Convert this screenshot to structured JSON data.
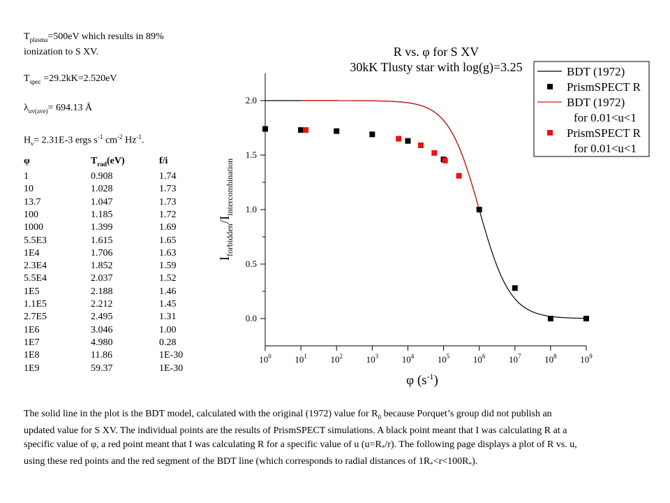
{
  "params": {
    "t_plasma_sym": "T",
    "t_plasma_sub": "plasma",
    "t_plasma_text": "=500eV which results in 89%",
    "t_plasma_line2": "ionization to S XV.",
    "t_spec_sym": "T",
    "t_spec_sub": "spec",
    "t_spec_text": " =29.2kK=2.520eV",
    "lambda_sym": "λ",
    "lambda_sub": "uv(ave)",
    "lambda_text": "= 694.13 Å",
    "h_sym": "H",
    "h_sub": "ν",
    "h_text_a": "= 2.31E-3 ergs s",
    "h_sup1": "-1",
    "h_text_b": " cm",
    "h_sup2": "-2",
    "h_text_c": " Hz",
    "h_sup3": "-1",
    "h_text_d": "."
  },
  "table": {
    "header": {
      "phi": "φ",
      "trad_sym": "T",
      "trad_sub": "rad",
      "trad_unit": "(eV)",
      "fi": "f/i"
    },
    "rows": [
      [
        "1",
        "0.908",
        "1.74"
      ],
      [
        "10",
        "1.028",
        "1.73"
      ],
      [
        "13.7",
        "1.047",
        "1.73"
      ],
      [
        "100",
        "1.185",
        "1.72"
      ],
      [
        "1000",
        "1.399",
        "1.69"
      ],
      [
        "5.5E3",
        "1.615",
        "1.65"
      ],
      [
        "1E4",
        "1.706",
        "1.63"
      ],
      [
        "2.3E4",
        "1.852",
        "1.59"
      ],
      [
        "5.5E4",
        "2.037",
        "1.52"
      ],
      [
        "1E5",
        "2.188",
        "1.46"
      ],
      [
        "1.1E5",
        "2.212",
        "1.45"
      ],
      [
        "2.7E5",
        "2.495",
        "1.31"
      ],
      [
        "1E6",
        "3.046",
        "1.00"
      ],
      [
        "1E7",
        "4.980",
        "0.28"
      ],
      [
        "1E8",
        "11.86",
        "1E-30"
      ],
      [
        "1E9",
        "59.37",
        "1E-30"
      ]
    ]
  },
  "chart_data": {
    "type": "scatter",
    "title": "R vs. φ for S XV",
    "subtitle": "30kK Tlusty star with log(g)=3.25",
    "xlabel": "φ (s",
    "xlabel_sup": "-1",
    "xlabel_close": ")",
    "ylabel_main": "I",
    "ylabel_sub1": "forbidden",
    "ylabel_mid": "/I",
    "ylabel_sub2": "intercombination",
    "x_scale": "log",
    "xlim": [
      1,
      1000000000
    ],
    "ylim": [
      -0.25,
      2.25
    ],
    "x_ticks": [
      {
        "value": 1,
        "base": "10",
        "exp": "0"
      },
      {
        "value": 10,
        "base": "10",
        "exp": "1"
      },
      {
        "value": 100,
        "base": "10",
        "exp": "2"
      },
      {
        "value": 1000,
        "base": "10",
        "exp": "3"
      },
      {
        "value": 10000,
        "base": "10",
        "exp": "4"
      },
      {
        "value": 100000,
        "base": "10",
        "exp": "5"
      },
      {
        "value": 1000000,
        "base": "10",
        "exp": "6"
      },
      {
        "value": 10000000,
        "base": "10",
        "exp": "7"
      },
      {
        "value": 100000000,
        "base": "10",
        "exp": "8"
      },
      {
        "value": 1000000000,
        "base": "10",
        "exp": "9"
      }
    ],
    "y_ticks": [
      {
        "value": 0.0,
        "label": "0.0"
      },
      {
        "value": 0.5,
        "label": "0.5"
      },
      {
        "value": 1.0,
        "label": "1.0"
      },
      {
        "value": 1.5,
        "label": "1.5"
      },
      {
        "value": 2.0,
        "label": "2.0"
      }
    ],
    "grid": false,
    "legend_position": "top-right",
    "legend": [
      {
        "kind": "line",
        "color": "#000000",
        "label": "BDT (1972)"
      },
      {
        "kind": "marker",
        "color": "#000000",
        "label": "PrismSPECT R"
      },
      {
        "kind": "line",
        "color": "#d01010",
        "label": "BDT (1972)",
        "label2": "for 0.01<u<1"
      },
      {
        "kind": "marker",
        "color": "#ee1111",
        "label": "PrismSPECT R",
        "label2": "for 0.01<u<1"
      }
    ],
    "bdt_model": {
      "r0": 2.0,
      "phi_c": 1000000,
      "x_start": 1,
      "x_end": 1000000000,
      "red_from": 10,
      "red_to": 1000000
    },
    "series": [
      {
        "name": "PrismSPECT R",
        "color": "#000000",
        "points": [
          {
            "x": 1,
            "y": 1.74
          },
          {
            "x": 10,
            "y": 1.73
          },
          {
            "x": 100,
            "y": 1.72
          },
          {
            "x": 1000,
            "y": 1.69
          },
          {
            "x": 10000,
            "y": 1.63
          },
          {
            "x": 100000,
            "y": 1.46
          },
          {
            "x": 1000000,
            "y": 1.0
          },
          {
            "x": 10000000,
            "y": 0.28
          },
          {
            "x": 100000000,
            "y": 0.0
          },
          {
            "x": 1000000000,
            "y": 0.0
          }
        ]
      },
      {
        "name": "PrismSPECT R for 0.01<u<1",
        "color": "#ee1111",
        "points": [
          {
            "x": 13.7,
            "y": 1.73
          },
          {
            "x": 5500,
            "y": 1.65
          },
          {
            "x": 23000,
            "y": 1.59
          },
          {
            "x": 55000,
            "y": 1.52
          },
          {
            "x": 110000,
            "y": 1.45
          },
          {
            "x": 270000,
            "y": 1.31
          }
        ]
      }
    ]
  },
  "caption": {
    "line1a": "The solid line in the plot is the BDT model, calculated with the original  (1972) value for R",
    "line1_sub": "0",
    "line1b": " because Porquet’s group did not publish an",
    "line2": "updated value for S XV.  The individual points are the results of PrismSPECT simulations.  A black point meant that I was calculating R at a",
    "line3": "specific value of φ, a red point meant that I was calculating R for a specific value of u (u=R",
    "line3_sub": "*",
    "line3_end": "/r).  The following page displays a plot of R vs. u,",
    "line4a": "using these red points and the red segment of the BDT line (which corresponds to radial distances of 1R",
    "line4_sub1": "*",
    "line4b": "<r<100R",
    "line4_sub2": "*",
    "line4c": ")."
  }
}
